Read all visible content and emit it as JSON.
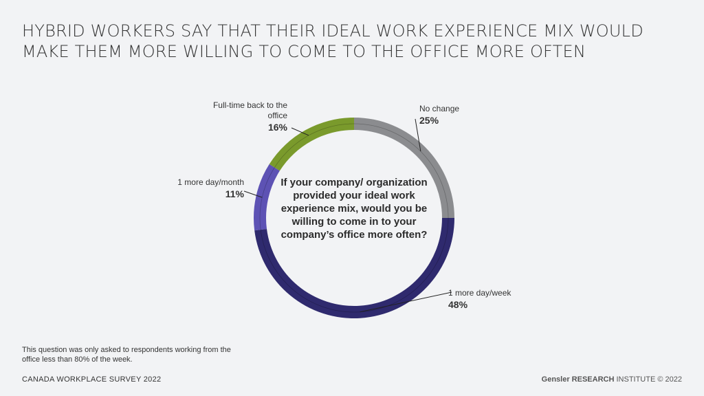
{
  "title_lines": [
    "HYBRID WORKERS SAY THAT THEIR IDEAL WORK EXPERIENCE MIX WOULD",
    "MAKE THEM MORE WILLING TO COME TO THE OFFICE MORE OFTEN"
  ],
  "chart_data": {
    "type": "pie",
    "donut": true,
    "center_text": "If your company/ organization provided your ideal work experience mix, would you be willing to come in to your company’s office more often?",
    "slices": [
      {
        "label": "No change",
        "value": 25,
        "display": "25%",
        "color": "#8b8c8f"
      },
      {
        "label": "1 more day/week",
        "value": 48,
        "display": "48%",
        "color": "#2f2a6e"
      },
      {
        "label": "1 more day/month",
        "value": 11,
        "display": "11%",
        "color": "#5d52b4"
      },
      {
        "label": "Full-time back to the office",
        "value": 16,
        "display": "16%",
        "color": "#7a9a2c"
      }
    ]
  },
  "note": "This question was only asked to respondents working from the office less than 80% of the week.",
  "footer": {
    "survey": "CANADA WORKPLACE SURVEY 2022",
    "brand": "Gensler RESEARCH",
    "institute": " INSTITUTE © 2022"
  }
}
